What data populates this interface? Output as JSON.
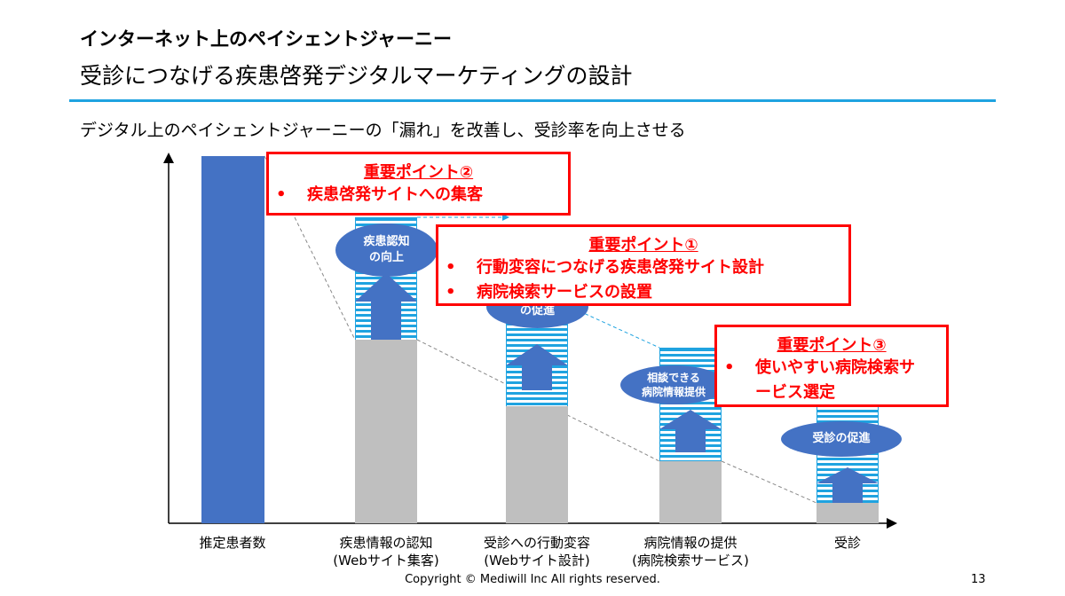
{
  "header": {
    "section_title": "インターネット上のペイシェントジャーニー",
    "title": "受診につなげる疾患啓発デジタルマーケティングの設計"
  },
  "lead": "デジタル上のペイシェントジャーニーの「漏れ」を改善し、受診率を向上させる",
  "stages": [
    {
      "label": "推定患者数",
      "sub": ""
    },
    {
      "label": "疾患情報の認知",
      "sub": "(Webサイト集客)",
      "bubble": [
        "疾患認知",
        "の向上"
      ]
    },
    {
      "label": "受診への行動変容",
      "sub": "(Webサイト設計)",
      "bubble": [
        "",
        "の促進"
      ]
    },
    {
      "label": "病院情報の提供",
      "sub": "(病院検索サービス)",
      "bubble": [
        "相談できる",
        "病院情報提供"
      ]
    },
    {
      "label": "受診",
      "sub": "",
      "bubble": [
        "受診の促進",
        ""
      ]
    }
  ],
  "callouts": [
    {
      "title": "重要ポイント②",
      "items": [
        "疾患啓発サイトへの集客"
      ]
    },
    {
      "title": "重要ポイント①",
      "items": [
        "行動変容につなげる疾患啓発サイト設計",
        "病院検索サービスの設置"
      ]
    },
    {
      "title": "重要ポイント③",
      "items": [
        "使いやすい病院検索サービス選定"
      ]
    }
  ],
  "bullet": "•",
  "colors": {
    "accent_red": "#FF0000",
    "bar_blue": "#4472C4",
    "hatch_blue": "#1FA3E0",
    "gray": "#BFBFBF"
  },
  "footer": {
    "copyright": "Copyright © Mediwill Inc All rights reserved.",
    "page": "13"
  }
}
